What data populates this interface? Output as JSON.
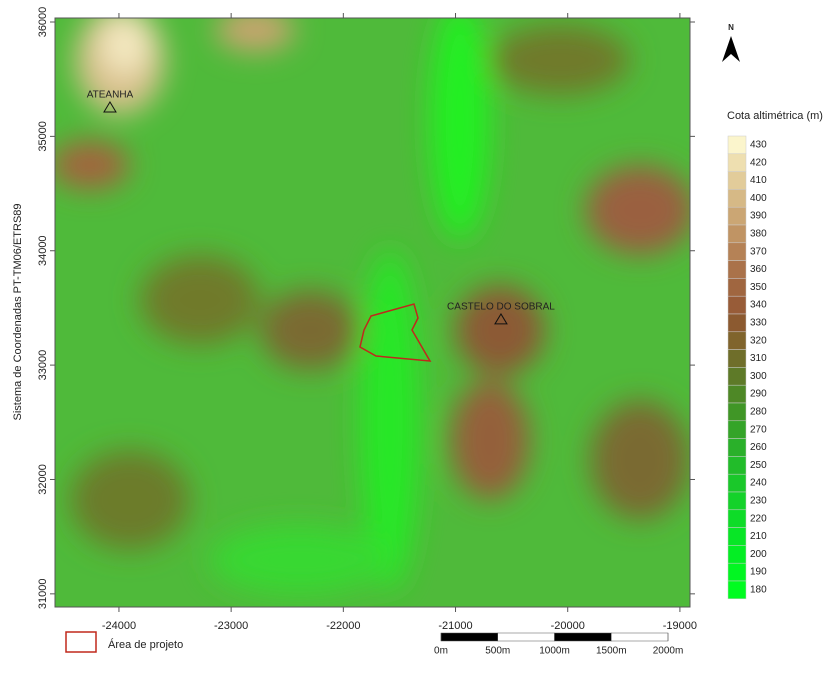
{
  "map": {
    "axis_label": "Sistema de Coordenadas PT-TM06/ETRS89",
    "xlim": [
      -24570,
      -18910
    ],
    "ylim": [
      30885,
      36035
    ],
    "xticks": [
      -24000,
      -23000,
      -22000,
      -21000,
      -20000,
      -19000
    ],
    "yticks": [
      31000,
      32000,
      33000,
      34000,
      35000,
      36000
    ],
    "places": [
      {
        "name": "ATEANHA",
        "x": -24080,
        "y": 35248
      },
      {
        "name": "CASTELO DO SOBRAL",
        "x": -20595,
        "y": 33395
      }
    ],
    "north": "N",
    "legend": {
      "title": "Cota altimétrica (m)",
      "classes": [
        430,
        420,
        410,
        400,
        390,
        380,
        370,
        360,
        350,
        340,
        330,
        320,
        310,
        300,
        290,
        280,
        270,
        260,
        250,
        240,
        230,
        220,
        210,
        200,
        190,
        180
      ],
      "colors": [
        "#fbf5cc",
        "#eedfb0",
        "#e2cc9a",
        "#d6b986",
        "#cba674",
        "#c09464",
        "#b58256",
        "#aa724a",
        "#a06640",
        "#985c38",
        "#8c5a30",
        "#80642c",
        "#6f6e2a",
        "#5e7a28",
        "#4e8826",
        "#409626",
        "#34a428",
        "#2ab02a",
        "#22bc2a",
        "#1ac82a",
        "#14d22a",
        "#0edc28",
        "#08e626",
        "#04ee24",
        "#02f622",
        "#00fc20"
      ]
    },
    "project_area": "Área de projeto",
    "scale_bar": [
      {
        "value": 0,
        "label": "0m"
      },
      {
        "value": 500,
        "label": "500m"
      },
      {
        "value": 1000,
        "label": "1000m"
      },
      {
        "value": 1500,
        "label": "1500m"
      },
      {
        "value": 2000,
        "label": "2000m"
      }
    ]
  }
}
